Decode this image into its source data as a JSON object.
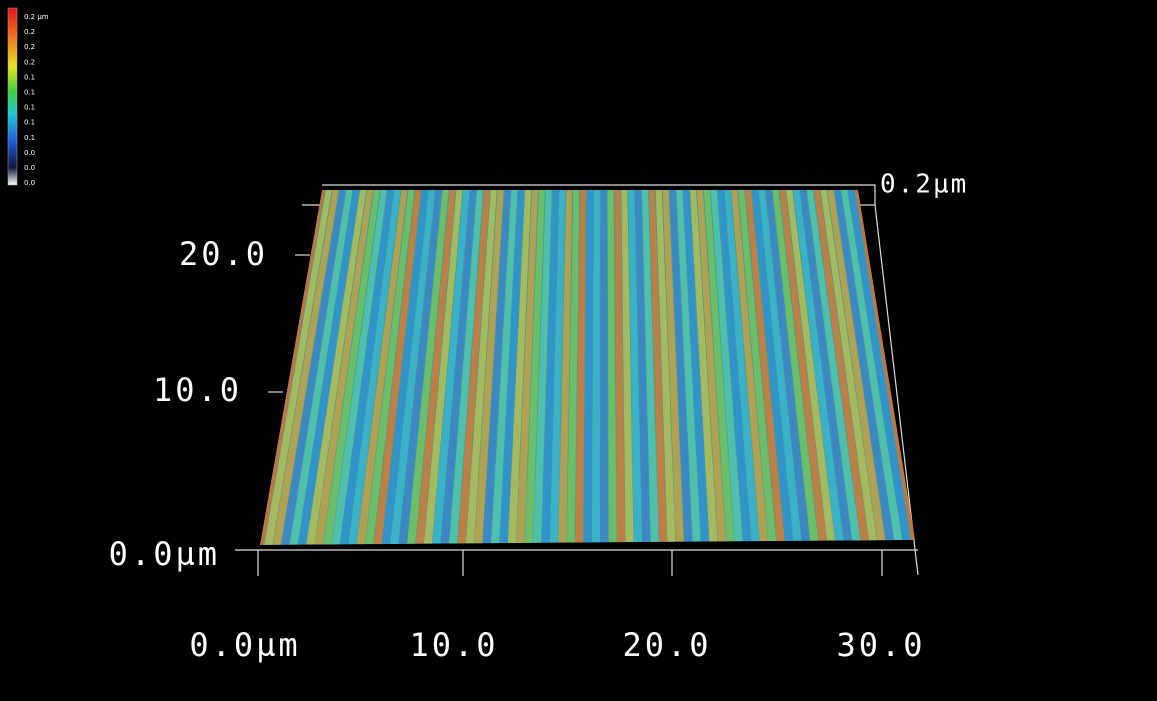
{
  "colorbar": {
    "labels": [
      "0.2 µm",
      "0.2",
      "0.2",
      "0.2",
      "0.1",
      "0.1",
      "0.1",
      "0.1",
      "0.1",
      "0.0",
      "0.0",
      "0.0"
    ]
  },
  "x_axis": {
    "ticks": [
      "0.0µm",
      "10.0",
      "20.0",
      "30.0"
    ]
  },
  "y_axis": {
    "ticks": [
      "0.0µm",
      "10.0",
      "20.0"
    ]
  },
  "z_axis": {
    "label": "0.2µm"
  }
}
